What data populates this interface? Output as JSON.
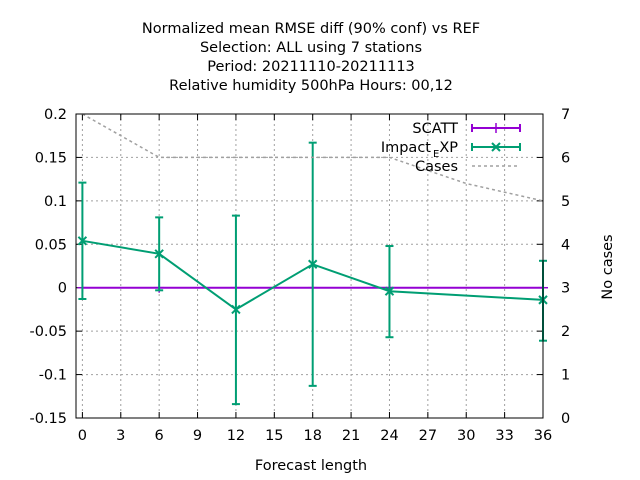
{
  "chart_data": {
    "type": "line",
    "title_lines": [
      "Normalized mean RMSE diff (90% conf) vs REF",
      "Selection: ALL using     7 stations",
      "Period: 20211110-20211113",
      "Relative humidity 500hPa   Hours:  00,12"
    ],
    "xlabel": "Forecast length",
    "ylabel": "",
    "y2label": "No cases",
    "xlim": [
      -0.5,
      36
    ],
    "ylim": [
      -0.15,
      0.2
    ],
    "y2lim": [
      0,
      7
    ],
    "xticks": [
      0,
      3,
      6,
      9,
      12,
      15,
      18,
      21,
      24,
      27,
      30,
      33,
      36
    ],
    "yticks": [
      -0.15,
      -0.1,
      -0.05,
      0,
      0.05,
      0.1,
      0.15,
      0.2
    ],
    "ytick_labels": [
      "-0.15",
      "-0.1",
      "-0.05",
      "0",
      "0.05",
      "0.1",
      "0.15",
      "0.2"
    ],
    "y2ticks": [
      0,
      1,
      2,
      3,
      4,
      5,
      6,
      7
    ],
    "grid": true,
    "legend_position": "top-right",
    "legend": {
      "scatt": "SCATT",
      "impact_main": "Impact",
      "impact_sub": "E",
      "impact_tail": "XP",
      "cases": "Cases"
    },
    "series": [
      {
        "key": "scatt",
        "name": "SCATT",
        "color": "#9400d3",
        "x": [
          0,
          6,
          12,
          18,
          24,
          36
        ],
        "y": [
          0,
          0,
          0,
          0,
          0,
          0
        ]
      },
      {
        "key": "impact",
        "name": "Impact_EXP",
        "color": "#009e73",
        "x": [
          0,
          6,
          12,
          18,
          24,
          36
        ],
        "y": [
          0.054,
          0.039,
          -0.025,
          0.027,
          -0.004,
          -0.014
        ],
        "err_low": [
          -0.013,
          -0.003,
          -0.134,
          -0.113,
          -0.057,
          -0.061
        ],
        "err_high": [
          0.121,
          0.081,
          0.083,
          0.167,
          0.048,
          0.031
        ]
      },
      {
        "key": "cases",
        "name": "Cases",
        "color": "#a0a0a0",
        "axis": "y2",
        "x": [
          0,
          6,
          12,
          18,
          24,
          30,
          36
        ],
        "y": [
          7,
          6,
          6,
          6,
          6,
          5.4,
          5
        ]
      }
    ]
  }
}
